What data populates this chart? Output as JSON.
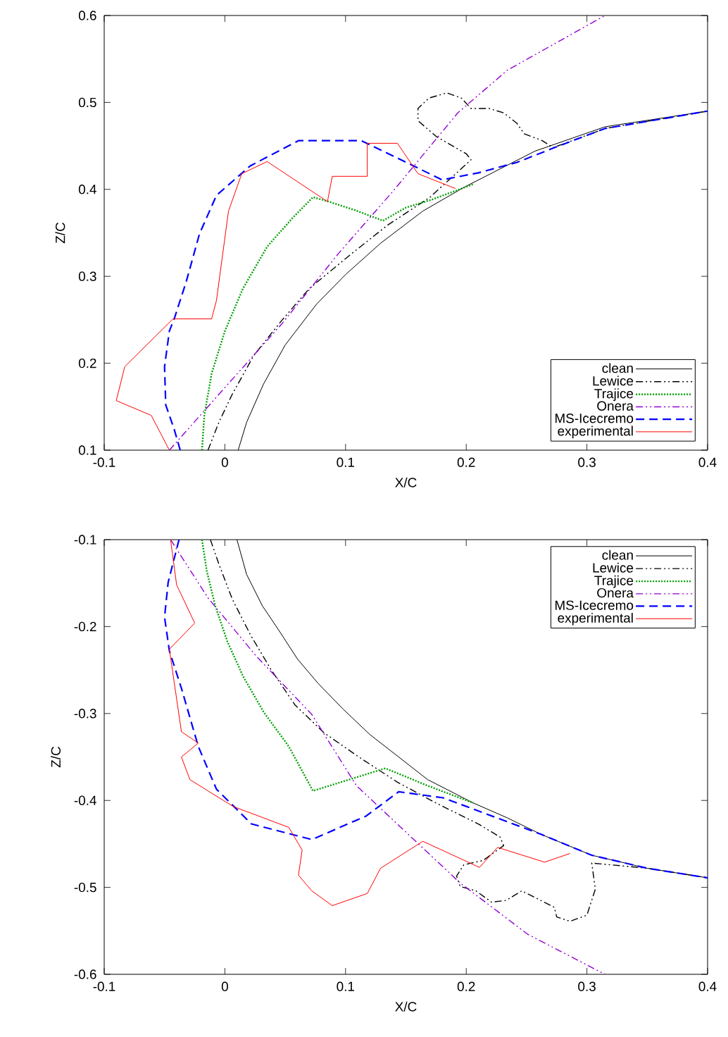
{
  "chart_data": [
    {
      "type": "line",
      "xlabel": "X/C",
      "ylabel": "Z/C",
      "xlim": [
        -0.1,
        0.4
      ],
      "ylim": [
        0.1,
        0.6
      ],
      "xticks": [
        -0.1,
        0,
        0.1,
        0.2,
        0.3,
        0.4
      ],
      "yticks": [
        0.1,
        0.2,
        0.3,
        0.4,
        0.5,
        0.6
      ],
      "legend": "bottom right",
      "series": [
        {
          "name": "clean",
          "color": "#000000",
          "line_style": "solid",
          "x": [
            0.011,
            0.018,
            0.032,
            0.05,
            0.076,
            0.1,
            0.129,
            0.164,
            0.199,
            0.257,
            0.315,
            0.4
          ],
          "values": [
            0.1,
            0.132,
            0.176,
            0.221,
            0.268,
            0.302,
            0.338,
            0.375,
            0.403,
            0.444,
            0.472,
            0.49
          ]
        },
        {
          "name": "Lewice",
          "color": "#000000",
          "line_style": "dashdotdotted",
          "x": [
            -0.014,
            -0.005,
            0.006,
            0.024,
            0.047,
            0.07,
            0.105,
            0.135,
            0.17,
            0.204,
            0.2,
            0.175,
            0.16,
            0.16,
            0.169,
            0.184,
            0.196,
            0.204,
            0.219,
            0.231,
            0.242,
            0.248,
            0.263,
            0.272,
            0.315,
            0.4
          ],
          "values": [
            0.1,
            0.132,
            0.164,
            0.209,
            0.249,
            0.286,
            0.326,
            0.359,
            0.391,
            0.434,
            0.441,
            0.461,
            0.479,
            0.493,
            0.505,
            0.511,
            0.505,
            0.493,
            0.493,
            0.488,
            0.476,
            0.464,
            0.456,
            0.448,
            0.47,
            0.49
          ]
        },
        {
          "name": "Trajice",
          "color": "#00a000",
          "line_style": "dotted",
          "x": [
            -0.019,
            -0.017,
            -0.011,
            0.0,
            0.015,
            0.035,
            0.056,
            0.073,
            0.086,
            0.108,
            0.131,
            0.15,
            0.171,
            0.206
          ],
          "values": [
            0.1,
            0.14,
            0.188,
            0.237,
            0.286,
            0.334,
            0.367,
            0.391,
            0.386,
            0.376,
            0.364,
            0.379,
            0.388,
            0.406
          ]
        },
        {
          "name": "Onera",
          "color": "#9400d3",
          "line_style": "dashdotdotted",
          "x": [
            -0.046,
            0.0,
            0.047,
            0.094,
            0.14,
            0.193,
            0.234,
            0.315
          ],
          "values": [
            0.1,
            0.172,
            0.245,
            0.326,
            0.399,
            0.488,
            0.537,
            0.6
          ]
        },
        {
          "name": "MS-Icecremo",
          "color": "#0000ff",
          "line_style": "dashed",
          "x": [
            -0.037,
            -0.042,
            -0.049,
            -0.05,
            -0.046,
            -0.042,
            -0.032,
            -0.021,
            -0.007,
            0.021,
            0.061,
            0.113,
            0.143,
            0.18,
            0.21,
            0.242,
            0.275,
            0.315,
            0.4
          ],
          "values": [
            0.1,
            0.124,
            0.152,
            0.196,
            0.237,
            0.251,
            0.294,
            0.349,
            0.393,
            0.427,
            0.456,
            0.456,
            0.436,
            0.411,
            0.419,
            0.431,
            0.449,
            0.47,
            0.49
          ]
        },
        {
          "name": "experimental",
          "color": "#ff0000",
          "line_style": "solid",
          "x": [
            -0.046,
            -0.061,
            -0.09,
            -0.083,
            -0.043,
            -0.011,
            -0.007,
            0.003,
            0.014,
            0.035,
            0.085,
            0.089,
            0.118,
            0.118,
            0.143,
            0.16,
            0.191
          ],
          "values": [
            0.1,
            0.14,
            0.157,
            0.196,
            0.251,
            0.251,
            0.272,
            0.375,
            0.418,
            0.432,
            0.386,
            0.415,
            0.415,
            0.453,
            0.453,
            0.418,
            0.401
          ]
        }
      ]
    },
    {
      "type": "line",
      "xlabel": "X/C",
      "ylabel": "Z/C",
      "xlim": [
        -0.1,
        0.4
      ],
      "ylim": [
        -0.6,
        -0.1
      ],
      "xticks": [
        -0.1,
        0,
        0.1,
        0.2,
        0.3,
        0.4
      ],
      "yticks": [
        -0.6,
        -0.5,
        -0.4,
        -0.3,
        -0.2,
        -0.1
      ],
      "legend": "top right",
      "series": [
        {
          "name": "clean",
          "color": "#000000",
          "line_style": "solid",
          "x": [
            0.01,
            0.018,
            0.031,
            0.046,
            0.06,
            0.077,
            0.098,
            0.12,
            0.144,
            0.168,
            0.206,
            0.234,
            0.262,
            0.304,
            0.35,
            0.4
          ],
          "values": [
            -0.1,
            -0.14,
            -0.176,
            -0.207,
            -0.237,
            -0.265,
            -0.295,
            -0.324,
            -0.35,
            -0.376,
            -0.403,
            -0.42,
            -0.439,
            -0.463,
            -0.478,
            -0.489
          ]
        },
        {
          "name": "Lewice",
          "color": "#000000",
          "line_style": "dashdotdotted",
          "x": [
            -0.012,
            -0.005,
            0.006,
            0.021,
            0.038,
            0.058,
            0.082,
            0.111,
            0.143,
            0.175,
            0.21,
            0.228,
            0.231,
            0.214,
            0.198,
            0.192,
            0.195,
            0.208,
            0.221,
            0.233,
            0.246,
            0.259,
            0.273,
            0.275,
            0.286,
            0.3,
            0.307,
            0.304,
            0.35,
            0.4
          ],
          "values": [
            -0.1,
            -0.128,
            -0.168,
            -0.209,
            -0.249,
            -0.29,
            -0.322,
            -0.35,
            -0.379,
            -0.403,
            -0.427,
            -0.442,
            -0.452,
            -0.469,
            -0.474,
            -0.487,
            -0.499,
            -0.504,
            -0.517,
            -0.515,
            -0.504,
            -0.513,
            -0.523,
            -0.534,
            -0.539,
            -0.532,
            -0.502,
            -0.472,
            -0.478,
            -0.489
          ]
        },
        {
          "name": "Trajice",
          "color": "#00a000",
          "line_style": "dotted",
          "x": [
            -0.019,
            -0.015,
            -0.008,
            0.002,
            0.015,
            0.032,
            0.053,
            0.073,
            0.133,
            0.168,
            0.206
          ],
          "values": [
            -0.1,
            -0.136,
            -0.176,
            -0.217,
            -0.257,
            -0.298,
            -0.338,
            -0.389,
            -0.363,
            -0.383,
            -0.403
          ]
        },
        {
          "name": "Onera",
          "color": "#9400d3",
          "line_style": "dashdotdotted",
          "x": [
            -0.045,
            -0.014,
            0.026,
            0.072,
            0.109,
            0.152,
            0.195,
            0.251,
            0.315
          ],
          "values": [
            -0.1,
            -0.167,
            -0.234,
            -0.301,
            -0.383,
            -0.439,
            -0.495,
            -0.554,
            -0.6
          ]
        },
        {
          "name": "MS-Icecremo",
          "color": "#0000ff",
          "line_style": "dashed",
          "x": [
            -0.038,
            -0.047,
            -0.05,
            -0.046,
            -0.036,
            -0.022,
            -0.007,
            0.022,
            0.072,
            0.117,
            0.144,
            0.181,
            0.262,
            0.304,
            0.35,
            0.4
          ],
          "values": [
            -0.1,
            -0.149,
            -0.189,
            -0.228,
            -0.271,
            -0.338,
            -0.387,
            -0.427,
            -0.445,
            -0.418,
            -0.39,
            -0.397,
            -0.439,
            -0.463,
            -0.478,
            -0.489
          ]
        },
        {
          "name": "experimental",
          "color": "#ff0000",
          "line_style": "solid",
          "x": [
            -0.045,
            -0.04,
            -0.025,
            -0.046,
            -0.036,
            -0.022,
            -0.036,
            -0.029,
            -0.014,
            0.007,
            0.053,
            0.064,
            0.061,
            0.072,
            0.089,
            0.118,
            0.129,
            0.164,
            0.211,
            0.226,
            0.265,
            0.286
          ],
          "values": [
            -0.1,
            -0.152,
            -0.196,
            -0.226,
            -0.321,
            -0.334,
            -0.35,
            -0.376,
            -0.389,
            -0.407,
            -0.431,
            -0.457,
            -0.486,
            -0.504,
            -0.521,
            -0.507,
            -0.478,
            -0.447,
            -0.477,
            -0.454,
            -0.471,
            -0.461
          ]
        }
      ]
    }
  ]
}
